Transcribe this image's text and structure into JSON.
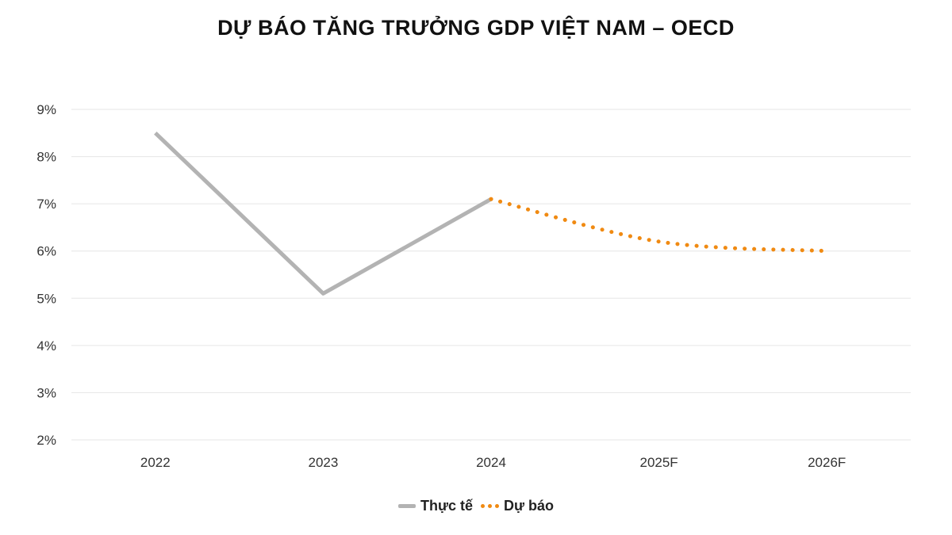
{
  "chart_data": {
    "type": "line",
    "title": "DỰ BÁO TĂNG TRƯỞNG GDP VIỆT NAM – OECD",
    "categories": [
      "2022",
      "2023",
      "2024",
      "2025F",
      "2026F"
    ],
    "series": [
      {
        "name": "Thực tế",
        "values": [
          8.5,
          5.1,
          7.1,
          null,
          null
        ],
        "color": "#b3b3b3",
        "style": "solid"
      },
      {
        "name": "Dự báo",
        "values": [
          null,
          null,
          7.1,
          6.2,
          6.0
        ],
        "color": "#f08a12",
        "style": "dotted"
      }
    ],
    "yticks": [
      "2%",
      "3%",
      "4%",
      "5%",
      "6%",
      "7%",
      "8%",
      "9%"
    ],
    "ylim": [
      2,
      9
    ],
    "grid": true,
    "legend": "bottom"
  }
}
